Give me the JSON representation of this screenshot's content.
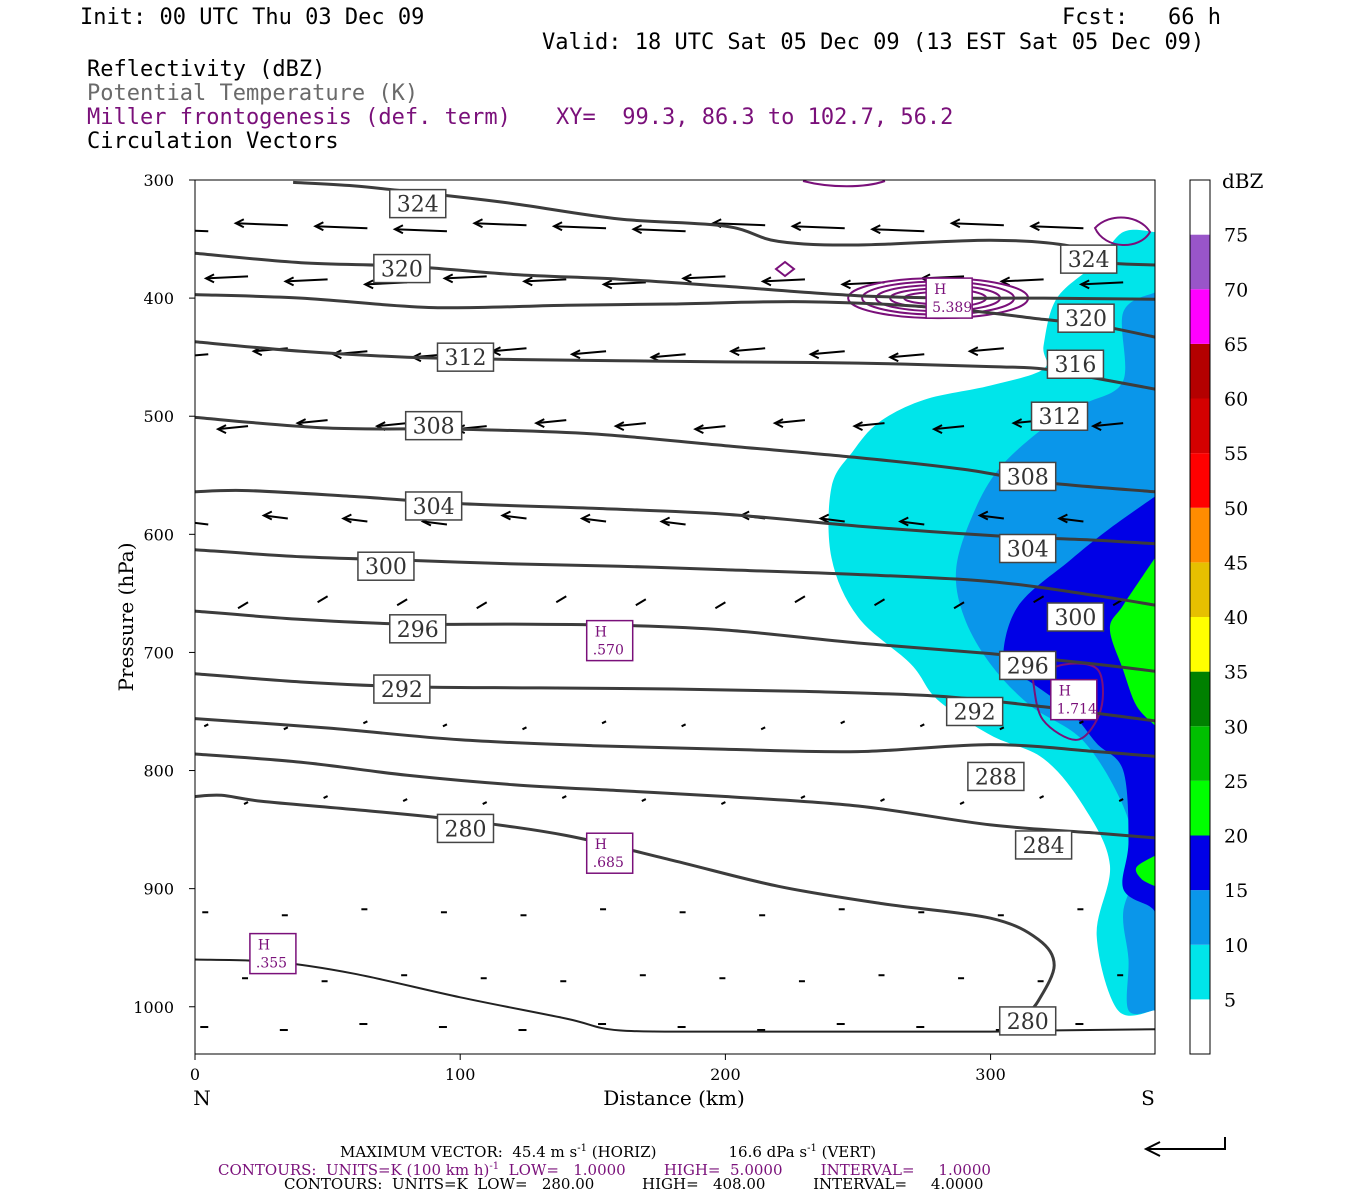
{
  "header": {
    "init": "Init: 00 UTC Thu 03 Dec 09",
    "fcst": "Fcst:   66 h",
    "valid": "Valid: 18 UTC Sat 05 Dec 09 (13 EST Sat 05 Dec 09)",
    "fields": [
      {
        "label": "Reflectivity (dBZ)",
        "color": "#000000"
      },
      {
        "label": "Potential Temperature (K)",
        "color": "#6a6a6a"
      },
      {
        "label": "Miller frontogenesis (def. term)",
        "color": "#7a107a"
      },
      {
        "label": "Circulation Vectors",
        "color": "#000000"
      }
    ],
    "xy": "XY=  99.3, 86.3 to 102.7, 56.2"
  },
  "footer": {
    "max_vector_prefix": "MAXIMUM VECTOR:  45.4 m s",
    "max_vector_horiz": " (HORIZ)",
    "max_vector_vert": "16.6 dPa s",
    "max_vector_vert_suffix": " (VERT)",
    "contours_frontogenesis_prefix": "CONTOURS:  UNITS=K (100 km h)",
    "contours_frontogenesis_suffix": "  LOW=   1.0000        HIGH=  5.0000        INTERVAL=     1.0000",
    "contours_theta": "CONTOURS:  UNITS=K  LOW=   280.00          HIGH=   408.00          INTERVAL=     4.0000",
    "sup_minus_one": "-1"
  },
  "chart_data": {
    "type": "contour",
    "xlabel": "Distance (km)",
    "ylabel": "Pressure (hPa)",
    "xlim": [
      0,
      362
    ],
    "ylim": [
      1040,
      300
    ],
    "x_ticks": [
      0,
      100,
      200,
      300
    ],
    "y_ticks": [
      300,
      400,
      500,
      600,
      700,
      800,
      900,
      1000
    ],
    "x_end_labels": {
      "left": "N",
      "right": "S"
    },
    "colorbar": {
      "title": "dBZ",
      "levels": [
        5,
        10,
        15,
        20,
        25,
        30,
        35,
        40,
        45,
        50,
        55,
        60,
        65,
        70,
        75
      ],
      "colors": [
        "#ffffff",
        "#00e5ea",
        "#0a96ea",
        "#0000e6",
        "#00ff00",
        "#00c000",
        "#008000",
        "#ffff00",
        "#e6c000",
        "#ff8c00",
        "#ff0000",
        "#d40000",
        "#b40000",
        "#ff00ff",
        "#9955c9",
        "#ffffff"
      ]
    },
    "theta_contours": [
      {
        "label": "280",
        "points": [
          [
            0,
            960
          ],
          [
            30,
            962
          ],
          [
            60,
            972
          ],
          [
            100,
            992
          ],
          [
            140,
            1010
          ],
          [
            160,
            1020
          ],
          [
            200,
            1021
          ],
          [
            250,
            1021
          ],
          [
            300,
            1021
          ],
          [
            325,
            1020
          ],
          [
            362,
            1019
          ]
        ]
      },
      {
        "label": "280",
        "points": [
          [
            0,
            822
          ],
          [
            10,
            821
          ],
          [
            25,
            826
          ],
          [
            60,
            833
          ],
          [
            100,
            842
          ],
          [
            140,
            855
          ],
          [
            180,
            876
          ],
          [
            220,
            898
          ],
          [
            260,
            913
          ],
          [
            300,
            925
          ],
          [
            318,
            943
          ],
          [
            324,
            965
          ],
          [
            318,
            995
          ],
          [
            313,
            1008
          ]
        ]
      },
      {
        "label": "284",
        "points": [
          [
            0,
            786
          ],
          [
            40,
            793
          ],
          [
            80,
            804
          ],
          [
            120,
            812
          ],
          [
            160,
            817
          ],
          [
            200,
            822
          ],
          [
            250,
            830
          ],
          [
            300,
            846
          ],
          [
            340,
            853
          ],
          [
            362,
            857
          ]
        ]
      },
      {
        "label": "288",
        "points": [
          [
            0,
            756
          ],
          [
            50,
            764
          ],
          [
            100,
            774
          ],
          [
            150,
            779
          ],
          [
            200,
            782
          ],
          [
            250,
            784
          ],
          [
            300,
            778
          ],
          [
            340,
            784
          ],
          [
            362,
            788
          ]
        ]
      },
      {
        "label": "292",
        "points": [
          [
            0,
            718
          ],
          [
            40,
            725
          ],
          [
            80,
            729
          ],
          [
            130,
            730
          ],
          [
            180,
            731
          ],
          [
            230,
            733
          ],
          [
            280,
            737
          ],
          [
            320,
            746
          ],
          [
            362,
            758
          ]
        ]
      },
      {
        "label": "296",
        "points": [
          [
            0,
            665
          ],
          [
            40,
            672
          ],
          [
            80,
            676
          ],
          [
            120,
            676
          ],
          [
            160,
            677
          ],
          [
            200,
            681
          ],
          [
            250,
            692
          ],
          [
            300,
            701
          ],
          [
            340,
            710
          ],
          [
            362,
            716
          ]
        ]
      },
      {
        "label": "300",
        "points": [
          [
            0,
            613
          ],
          [
            40,
            619
          ],
          [
            80,
            622
          ],
          [
            120,
            625
          ],
          [
            160,
            627
          ],
          [
            200,
            630
          ],
          [
            250,
            634
          ],
          [
            300,
            640
          ],
          [
            340,
            652
          ],
          [
            362,
            660
          ]
        ]
      },
      {
        "label": "304",
        "points": [
          [
            0,
            564
          ],
          [
            20,
            563
          ],
          [
            60,
            568
          ],
          [
            100,
            574
          ],
          [
            150,
            578
          ],
          [
            200,
            583
          ],
          [
            250,
            593
          ],
          [
            300,
            601
          ],
          [
            340,
            605
          ],
          [
            362,
            608
          ]
        ]
      },
      {
        "label": "308",
        "points": [
          [
            0,
            501
          ],
          [
            50,
            510
          ],
          [
            100,
            511
          ],
          [
            150,
            515
          ],
          [
            200,
            525
          ],
          [
            250,
            535
          ],
          [
            290,
            545
          ],
          [
            320,
            556
          ],
          [
            362,
            564
          ]
        ]
      },
      {
        "label": "312",
        "points": [
          [
            0,
            437
          ],
          [
            40,
            445
          ],
          [
            80,
            450
          ],
          [
            120,
            452
          ],
          [
            160,
            453
          ],
          [
            200,
            454
          ],
          [
            250,
            455
          ],
          [
            300,
            458
          ],
          [
            320,
            460
          ],
          [
            340,
            468
          ],
          [
            362,
            477
          ]
        ]
      },
      {
        "label": "316",
        "points": [
          [
            0,
            397
          ],
          [
            40,
            400
          ],
          [
            90,
            408
          ],
          [
            140,
            406
          ],
          [
            180,
            405
          ],
          [
            230,
            403
          ],
          [
            280,
            408
          ],
          [
            320,
            418
          ],
          [
            340,
            423
          ],
          [
            362,
            433
          ]
        ]
      },
      {
        "label": "320",
        "points": [
          [
            0,
            362
          ],
          [
            40,
            370
          ],
          [
            80,
            373
          ],
          [
            120,
            380
          ],
          [
            160,
            384
          ],
          [
            200,
            390
          ],
          [
            250,
            398
          ],
          [
            290,
            400
          ],
          [
            320,
            400
          ],
          [
            362,
            401
          ]
        ]
      },
      {
        "label": "324",
        "points": [
          [
            37,
            302
          ],
          [
            60,
            305
          ],
          [
            90,
            312
          ],
          [
            120,
            320
          ],
          [
            160,
            333
          ],
          [
            200,
            339
          ],
          [
            220,
            352
          ],
          [
            250,
            355
          ],
          [
            300,
            351
          ],
          [
            330,
            356
          ],
          [
            340,
            369
          ],
          [
            362,
            372
          ]
        ]
      }
    ],
    "theta_labels": [
      {
        "text": "324",
        "x": 84,
        "p": 320
      },
      {
        "text": "324",
        "x": 337,
        "p": 367
      },
      {
        "text": "320",
        "x": 78,
        "p": 375
      },
      {
        "text": "320",
        "x": 336,
        "p": 417
      },
      {
        "text": "316",
        "x": 332,
        "p": 456
      },
      {
        "text": "312",
        "x": 102,
        "p": 450
      },
      {
        "text": "312",
        "x": 326,
        "p": 500
      },
      {
        "text": "308",
        "x": 90,
        "p": 508
      },
      {
        "text": "308",
        "x": 314,
        "p": 551
      },
      {
        "text": "304",
        "x": 90,
        "p": 576
      },
      {
        "text": "304",
        "x": 314,
        "p": 612
      },
      {
        "text": "300",
        "x": 72,
        "p": 627
      },
      {
        "text": "300",
        "x": 332,
        "p": 670
      },
      {
        "text": "296",
        "x": 84,
        "p": 680
      },
      {
        "text": "296",
        "x": 314,
        "p": 711
      },
      {
        "text": "292",
        "x": 78,
        "p": 731
      },
      {
        "text": "292",
        "x": 294,
        "p": 750
      },
      {
        "text": "288",
        "x": 302,
        "p": 805
      },
      {
        "text": "284",
        "x": 320,
        "p": 863
      },
      {
        "text": "280",
        "x": 102,
        "p": 849
      },
      {
        "text": "280",
        "x": 314,
        "p": 1012
      }
    ],
    "frontogenesis_maxima": [
      {
        "label": "H",
        "value": "5.389",
        "x": 284,
        "p": 400
      },
      {
        "label": "H",
        "value": ".570",
        "x": 156,
        "p": 690
      },
      {
        "label": "H",
        "value": "1.714",
        "x": 331,
        "p": 740
      },
      {
        "label": "H",
        "value": ".685",
        "x": 156,
        "p": 870
      },
      {
        "label": "H",
        "value": ".355",
        "x": 29,
        "p": 955
      }
    ],
    "reflectivity_regions": [
      {
        "dbz": 5,
        "points": [
          [
            362,
            344
          ],
          [
            350,
            344
          ],
          [
            340,
            370
          ],
          [
            325,
            400
          ],
          [
            320,
            440
          ],
          [
            320,
            460
          ],
          [
            300,
            474
          ],
          [
            275,
            486
          ],
          [
            258,
            505
          ],
          [
            248,
            530
          ],
          [
            240,
            560
          ],
          [
            240,
            620
          ],
          [
            250,
            670
          ],
          [
            270,
            710
          ],
          [
            280,
            740
          ],
          [
            300,
            770
          ],
          [
            320,
            790
          ],
          [
            335,
            830
          ],
          [
            345,
            880
          ],
          [
            340,
            940
          ],
          [
            348,
            1003
          ],
          [
            362,
            1003
          ]
        ]
      },
      {
        "dbz": 10,
        "points": [
          [
            362,
            395
          ],
          [
            350,
            412
          ],
          [
            350,
            470
          ],
          [
            335,
            490
          ],
          [
            320,
            510
          ],
          [
            303,
            545
          ],
          [
            293,
            585
          ],
          [
            287,
            630
          ],
          [
            290,
            670
          ],
          [
            300,
            710
          ],
          [
            315,
            745
          ],
          [
            335,
            775
          ],
          [
            350,
            830
          ],
          [
            355,
            880
          ],
          [
            350,
            920
          ],
          [
            352,
            960
          ],
          [
            352,
            1003
          ],
          [
            362,
            1003
          ]
        ]
      },
      {
        "dbz": 15,
        "points": [
          [
            362,
            568
          ],
          [
            345,
            595
          ],
          [
            330,
            622
          ],
          [
            310,
            662
          ],
          [
            305,
            710
          ],
          [
            315,
            725
          ],
          [
            330,
            750
          ],
          [
            340,
            777
          ],
          [
            350,
            800
          ],
          [
            352,
            860
          ],
          [
            350,
            900
          ],
          [
            360,
            915
          ],
          [
            362,
            920
          ]
        ]
      },
      {
        "dbz": 20,
        "points": [
          [
            362,
            620
          ],
          [
            350,
            660
          ],
          [
            345,
            680
          ],
          [
            350,
            715
          ],
          [
            355,
            745
          ],
          [
            362,
            762
          ]
        ]
      },
      {
        "dbz": 20,
        "points": [
          [
            362,
            872
          ],
          [
            355,
            882
          ],
          [
            357,
            892
          ],
          [
            362,
            898
          ]
        ]
      }
    ]
  }
}
